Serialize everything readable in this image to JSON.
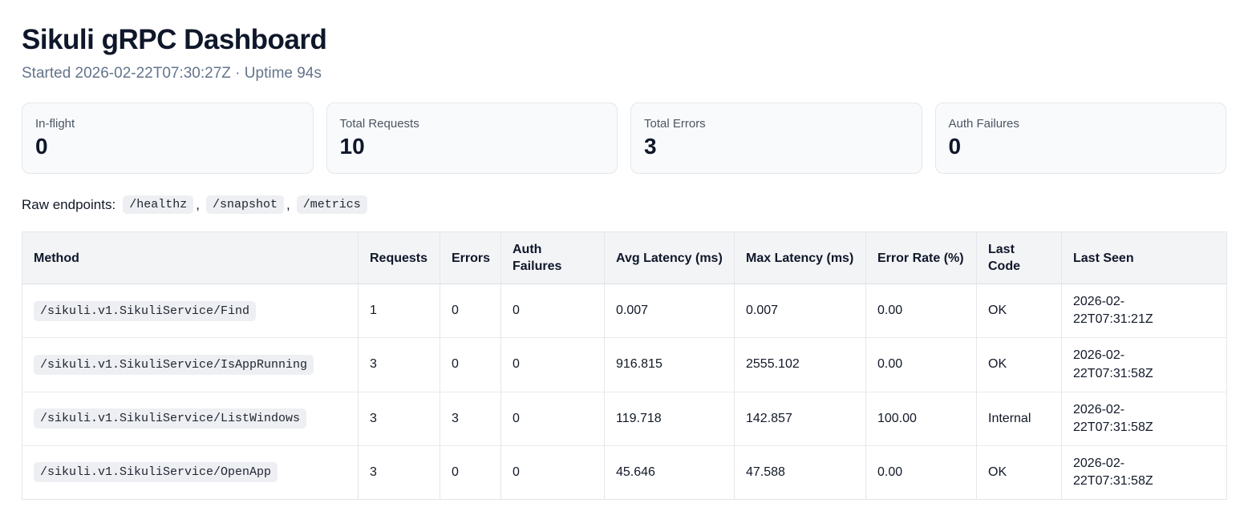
{
  "page": {
    "title": "Sikuli gRPC Dashboard",
    "subtitle": "Started 2026-02-22T07:30:27Z · Uptime 94s"
  },
  "stats": [
    {
      "label": "In-flight",
      "value": "0"
    },
    {
      "label": "Total Requests",
      "value": "10"
    },
    {
      "label": "Total Errors",
      "value": "3"
    },
    {
      "label": "Auth Failures",
      "value": "0"
    }
  ],
  "endpoints": {
    "label": "Raw endpoints:",
    "separator": ",",
    "links": [
      {
        "text": "/healthz"
      },
      {
        "text": "/snapshot"
      },
      {
        "text": "/metrics"
      }
    ]
  },
  "table": {
    "columns": {
      "method": "Method",
      "requests": "Requests",
      "errors": "Errors",
      "auth_failures": "Auth Failures",
      "avg_latency": "Avg Latency (ms)",
      "max_latency": "Max Latency (ms)",
      "error_rate": "Error Rate (%)",
      "last_code": "Last Code",
      "last_seen": "Last Seen"
    },
    "rows": [
      {
        "method": "/sikuli.v1.SikuliService/Find",
        "requests": "1",
        "errors": "0",
        "auth_failures": "0",
        "avg_latency": "0.007",
        "max_latency": "0.007",
        "error_rate": "0.00",
        "last_code": "OK",
        "last_seen": "2026-02-22T07:31:21Z"
      },
      {
        "method": "/sikuli.v1.SikuliService/IsAppRunning",
        "requests": "3",
        "errors": "0",
        "auth_failures": "0",
        "avg_latency": "916.815",
        "max_latency": "2555.102",
        "error_rate": "0.00",
        "last_code": "OK",
        "last_seen": "2026-02-22T07:31:58Z"
      },
      {
        "method": "/sikuli.v1.SikuliService/ListWindows",
        "requests": "3",
        "errors": "3",
        "auth_failures": "0",
        "avg_latency": "119.718",
        "max_latency": "142.857",
        "error_rate": "100.00",
        "last_code": "Internal",
        "last_seen": "2026-02-22T07:31:58Z"
      },
      {
        "method": "/sikuli.v1.SikuliService/OpenApp",
        "requests": "3",
        "errors": "0",
        "auth_failures": "0",
        "avg_latency": "45.646",
        "max_latency": "47.588",
        "error_rate": "0.00",
        "last_code": "OK",
        "last_seen": "2026-02-22T07:31:58Z"
      }
    ]
  },
  "colors": {
    "text_primary": "#0f172a",
    "text_secondary": "#64748b",
    "card_background": "#f9fafb",
    "chip_background": "#edeff2",
    "table_header_background": "#f3f4f6",
    "border": "#e5e7eb"
  }
}
